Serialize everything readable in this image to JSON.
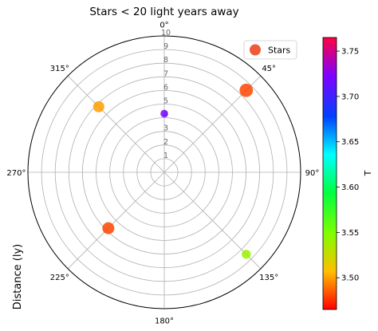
{
  "chart_data": {
    "type": "scatter",
    "projection": "polar",
    "title": "Stars < 20 light years away",
    "ylabel": "Distance (ly)",
    "colorbar_label": "T",
    "theta_zero_location": "N",
    "theta_direction": "clockwise",
    "rlim": [
      0,
      10
    ],
    "r_ticks": [
      "1",
      "2",
      "3",
      "4",
      "5",
      "6",
      "7",
      "8",
      "9",
      "10"
    ],
    "theta_ticks": [
      "0°",
      "45°",
      "90°",
      "135°",
      "180°",
      "225°",
      "270°",
      "315°"
    ],
    "grid": true,
    "legend": {
      "placement": "top-right",
      "entries": [
        "Stars"
      ]
    },
    "colormap": "gist_rainbow",
    "colorbar_range": [
      3.465,
      3.765
    ],
    "colorbar_ticks": [
      "3.50",
      "3.55",
      "3.60",
      "3.65",
      "3.70",
      "3.75"
    ],
    "series": [
      {
        "name": "Stars",
        "points": [
          {
            "theta_deg": 0,
            "r": 4.3,
            "T": 3.72,
            "size": 4
          },
          {
            "theta_deg": 45,
            "r": 8.5,
            "T": 3.48,
            "size": 12
          },
          {
            "theta_deg": 135,
            "r": 8.5,
            "T": 3.54,
            "size": 6
          },
          {
            "theta_deg": 225,
            "r": 5.8,
            "T": 3.48,
            "size": 10
          },
          {
            "theta_deg": 315,
            "r": 6.8,
            "T": 3.5,
            "size": 9
          }
        ]
      }
    ]
  }
}
